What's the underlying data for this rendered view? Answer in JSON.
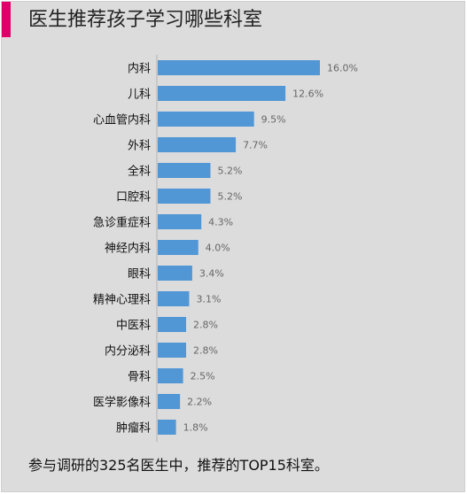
{
  "title": "医生推荐孩子学习哪些科室",
  "caption": "参与调研的325名医生中，推荐的TOP15科室。",
  "colors": {
    "bar": "#5196d5",
    "accent": "#e0006a",
    "background": "#dcdcdc"
  },
  "chart_data": {
    "type": "bar",
    "orientation": "horizontal",
    "categories": [
      "内科",
      "儿科",
      "心血管内科",
      "外科",
      "全科",
      "口腔科",
      "急诊重症科",
      "神经内科",
      "眼科",
      "精神心理科",
      "中医科",
      "内分泌科",
      "骨科",
      "医学影像科",
      "肿瘤科"
    ],
    "values": [
      16.0,
      12.6,
      9.5,
      7.7,
      5.2,
      5.2,
      4.3,
      4.0,
      3.4,
      3.1,
      2.8,
      2.8,
      2.5,
      2.2,
      1.8
    ],
    "value_suffix": "%",
    "title": "医生推荐孩子学习哪些科室",
    "xlabel": "",
    "ylabel": "",
    "xlim": [
      0,
      16.0
    ],
    "grid": false,
    "legend": "none"
  }
}
